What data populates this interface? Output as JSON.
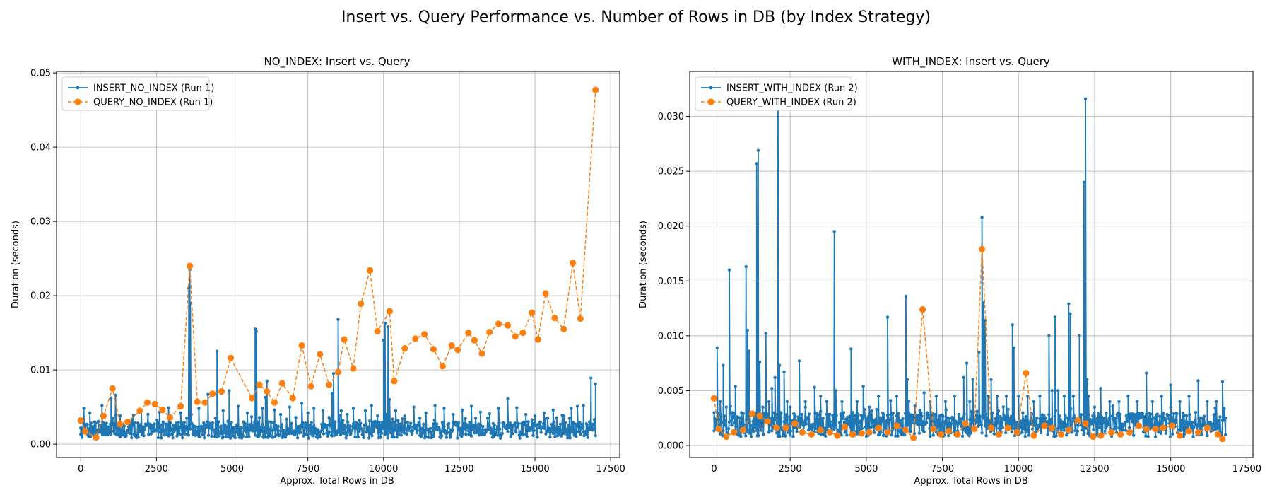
{
  "figure": {
    "title": "Insert vs. Query Performance vs. Number of Rows in DB (by Index Strategy)"
  },
  "colors": {
    "insert": "#1f77b4",
    "query": "#ff7f0e",
    "grid": "#b0b0b0"
  },
  "chart_data": [
    {
      "type": "line",
      "title": "NO_INDEX: Insert vs. Query",
      "xlabel": "Approx. Total Rows in DB",
      "ylabel": "Duration (seconds)",
      "xlim": [
        -800,
        17800
      ],
      "ylim": [
        -0.0018,
        0.0502
      ],
      "xticks": [
        0,
        2500,
        5000,
        7500,
        10000,
        12500,
        15000,
        17500
      ],
      "xtick_labels": [
        "0",
        "2500",
        "5000",
        "7500",
        "10000",
        "12500",
        "15000",
        "17500"
      ],
      "yticks": [
        0.0,
        0.01,
        0.02,
        0.03,
        0.04,
        0.05
      ],
      "ytick_labels": [
        "0.00",
        "0.01",
        "0.02",
        "0.03",
        "0.04",
        "0.05"
      ],
      "grid": true,
      "legend": "top-left",
      "series": [
        {
          "name": "INSERT_NO_INDEX (Run 1)",
          "style": "solid-dot",
          "noise": {
            "x_start": 0,
            "x_end": 17000,
            "step": 20,
            "base": 0.0019,
            "amp": 0.0011,
            "seed": 7
          },
          "x": [
            0,
            100,
            300,
            500,
            700,
            850,
            1000,
            1150,
            1300,
            1500,
            1700,
            2000,
            2300,
            2600,
            2900,
            3100,
            3300,
            3500,
            3570,
            3600,
            3620,
            3650,
            3700,
            3900,
            4200,
            4450,
            4500,
            4550,
            4700,
            4900,
            5000,
            5200,
            5500,
            5700,
            5760,
            5800,
            5850,
            6000,
            6100,
            6150,
            6200,
            6400,
            6600,
            6900,
            7100,
            7300,
            7500,
            7700,
            8000,
            8200,
            8300,
            8350,
            8400,
            8500,
            8550,
            8600,
            8800,
            9000,
            9200,
            9400,
            9600,
            9800,
            10000,
            10050,
            10100,
            10150,
            10200,
            10400,
            10700,
            11000,
            11200,
            11400,
            11700,
            12000,
            12300,
            12600,
            12900,
            13200,
            13500,
            13800,
            14100,
            14400,
            14700,
            15000,
            15300,
            15600,
            15900,
            16200,
            16400,
            16600,
            16800,
            16850,
            16900,
            17000
          ],
          "y": [
            0.0022,
            0.0048,
            0.0042,
            0.0016,
            0.0052,
            0.0028,
            0.0062,
            0.0066,
            0.0038,
            0.0014,
            0.0033,
            0.0045,
            0.0022,
            0.0043,
            0.0049,
            0.0018,
            0.0042,
            0.0035,
            0.021,
            0.0235,
            0.019,
            0.004,
            0.0023,
            0.0048,
            0.0067,
            0.0035,
            0.0125,
            0.003,
            0.0045,
            0.0072,
            0.0018,
            0.0051,
            0.0042,
            0.0025,
            0.0155,
            0.0152,
            0.003,
            0.0048,
            0.0063,
            0.0085,
            0.003,
            0.0046,
            0.004,
            0.005,
            0.0036,
            0.0055,
            0.0042,
            0.0048,
            0.0045,
            0.0036,
            0.0068,
            0.0095,
            0.003,
            0.0168,
            0.0038,
            0.0045,
            0.004,
            0.0048,
            0.0032,
            0.0045,
            0.0052,
            0.0038,
            0.014,
            0.0163,
            0.004,
            0.0158,
            0.006,
            0.0045,
            0.0038,
            0.005,
            0.0035,
            0.0042,
            0.0052,
            0.0048,
            0.004,
            0.0046,
            0.0051,
            0.0043,
            0.0041,
            0.0048,
            0.0061,
            0.0049,
            0.004,
            0.0038,
            0.0042,
            0.0046,
            0.0039,
            0.0048,
            0.0051,
            0.0052,
            0.003,
            0.0089,
            0.002,
            0.0081
          ]
        },
        {
          "name": "QUERY_NO_INDEX (Run 1)",
          "style": "dashed-circle",
          "x": [
            0,
            150,
            500,
            750,
            1050,
            1300,
            1550,
            1950,
            2200,
            2450,
            2700,
            2950,
            3300,
            3600,
            3850,
            4100,
            4350,
            4650,
            4950,
            5650,
            5900,
            6150,
            6400,
            6650,
            7000,
            7300,
            7600,
            7900,
            8200,
            8500,
            8700,
            9000,
            9250,
            9550,
            9800,
            10200,
            10350,
            10700,
            11050,
            11350,
            11650,
            11950,
            12250,
            12450,
            12800,
            13000,
            13250,
            13500,
            13800,
            14100,
            14350,
            14600,
            14900,
            15100,
            15350,
            15650,
            15950,
            16250,
            16500,
            17000
          ],
          "y": [
            0.0032,
            0.0017,
            0.0009,
            0.0038,
            0.0075,
            0.0027,
            0.003,
            0.0045,
            0.0056,
            0.0054,
            0.0046,
            0.0036,
            0.0051,
            0.024,
            0.0057,
            0.0056,
            0.0068,
            0.0071,
            0.0116,
            0.0062,
            0.008,
            0.0071,
            0.0056,
            0.0082,
            0.0062,
            0.0133,
            0.0078,
            0.0121,
            0.008,
            0.0097,
            0.0141,
            0.0102,
            0.0189,
            0.0234,
            0.0152,
            0.0179,
            0.0085,
            0.0129,
            0.0142,
            0.0148,
            0.0128,
            0.0105,
            0.0133,
            0.0127,
            0.015,
            0.014,
            0.0122,
            0.0151,
            0.0162,
            0.016,
            0.0145,
            0.015,
            0.0177,
            0.0141,
            0.0203,
            0.017,
            0.0155,
            0.0244,
            0.0169,
            0.0477
          ]
        }
      ]
    },
    {
      "type": "line",
      "title": "WITH_INDEX: Insert vs. Query",
      "xlabel": "Approx. Total Rows in DB",
      "ylabel": "Duration (seconds)",
      "xlim": [
        -800,
        17700
      ],
      "ylim": [
        -0.0011,
        0.0341
      ],
      "xticks": [
        0,
        2500,
        5000,
        7500,
        10000,
        12500,
        15000,
        17500
      ],
      "xtick_labels": [
        "0",
        "2500",
        "5000",
        "7500",
        "10000",
        "12500",
        "15000",
        "17500"
      ],
      "yticks": [
        0.0,
        0.005,
        0.01,
        0.015,
        0.02,
        0.025,
        0.03
      ],
      "ytick_labels": [
        "0.000",
        "0.005",
        "0.010",
        "0.015",
        "0.020",
        "0.025",
        "0.030"
      ],
      "grid": true,
      "legend": "top-left",
      "series": [
        {
          "name": "INSERT_WITH_INDEX (Run 2)",
          "style": "solid-dot",
          "noise": {
            "x_start": 0,
            "x_end": 16800,
            "step": 20,
            "base": 0.0019,
            "amp": 0.0011,
            "seed": 13
          },
          "x": [
            0,
            100,
            200,
            300,
            400,
            500,
            600,
            700,
            900,
            1050,
            1100,
            1150,
            1300,
            1400,
            1450,
            1500,
            1600,
            1700,
            1800,
            1900,
            2000,
            2100,
            2150,
            2200,
            2300,
            2400,
            2500,
            2800,
            3000,
            3300,
            3500,
            3700,
            3950,
            4000,
            4200,
            4500,
            4700,
            4900,
            5100,
            5400,
            5700,
            5800,
            6000,
            6300,
            6350,
            6400,
            6600,
            6900,
            7100,
            7300,
            7600,
            7900,
            8200,
            8300,
            8400,
            8500,
            8700,
            8800,
            8850,
            8900,
            9000,
            9100,
            9300,
            9600,
            9800,
            9850,
            10000,
            10300,
            10500,
            10700,
            11000,
            11100,
            11200,
            11300,
            11500,
            11650,
            11700,
            11800,
            12000,
            12150,
            12200,
            12250,
            12300,
            12500,
            12700,
            13000,
            13300,
            13600,
            13900,
            14200,
            14400,
            14700,
            15000,
            15300,
            15600,
            15900,
            16200,
            16500,
            16700,
            16800
          ],
          "y": [
            0.003,
            0.0089,
            0.004,
            0.0073,
            0.0035,
            0.016,
            0.003,
            0.0054,
            0.003,
            0.0163,
            0.0105,
            0.0086,
            0.003,
            0.0257,
            0.0269,
            0.0076,
            0.0035,
            0.0102,
            0.004,
            0.0052,
            0.0062,
            0.0315,
            0.0073,
            0.003,
            0.0067,
            0.004,
            0.0035,
            0.0077,
            0.004,
            0.0053,
            0.0045,
            0.004,
            0.0195,
            0.005,
            0.004,
            0.0088,
            0.004,
            0.0054,
            0.0035,
            0.0045,
            0.0117,
            0.0041,
            0.0045,
            0.0136,
            0.006,
            0.004,
            0.0036,
            0.0048,
            0.004,
            0.0045,
            0.004,
            0.0045,
            0.0062,
            0.0075,
            0.004,
            0.006,
            0.0085,
            0.0208,
            0.013,
            0.0114,
            0.0045,
            0.006,
            0.0045,
            0.0045,
            0.011,
            0.0089,
            0.0045,
            0.0045,
            0.004,
            0.0045,
            0.01,
            0.005,
            0.0117,
            0.005,
            0.0045,
            0.0129,
            0.012,
            0.0045,
            0.01,
            0.024,
            0.0316,
            0.006,
            0.0045,
            0.0035,
            0.0052,
            0.004,
            0.004,
            0.0045,
            0.004,
            0.0066,
            0.004,
            0.0045,
            0.0055,
            0.004,
            0.0045,
            0.0059,
            0.004,
            0.004,
            0.0058,
            0.0025
          ]
        },
        {
          "name": "QUERY_WITH_INDEX (Run 2)",
          "style": "dashed-circle",
          "x": [
            0,
            150,
            400,
            650,
            950,
            1250,
            1500,
            1750,
            2050,
            2350,
            2650,
            2900,
            3200,
            3500,
            3800,
            4050,
            4300,
            4550,
            4850,
            5100,
            5400,
            5700,
            6000,
            6300,
            6550,
            6850,
            7200,
            7450,
            7700,
            8000,
            8250,
            8550,
            8800,
            9100,
            9350,
            9650,
            9950,
            10250,
            10500,
            10850,
            11100,
            11400,
            11650,
            11950,
            12200,
            12450,
            12700,
            13050,
            13350,
            13650,
            13950,
            14200,
            14500,
            14750,
            15050,
            15300,
            15600,
            15900,
            16200,
            16550,
            16700
          ],
          "y": [
            0.0043,
            0.0015,
            0.0008,
            0.0012,
            0.0014,
            0.0029,
            0.0027,
            0.0022,
            0.0016,
            0.0016,
            0.002,
            0.0012,
            0.001,
            0.0014,
            0.0012,
            0.0009,
            0.0017,
            0.001,
            0.0011,
            0.0012,
            0.0016,
            0.0012,
            0.0018,
            0.0014,
            0.0007,
            0.0124,
            0.0015,
            0.001,
            0.0013,
            0.001,
            0.002,
            0.0015,
            0.0179,
            0.0016,
            0.001,
            0.0016,
            0.0012,
            0.0066,
            0.0009,
            0.0018,
            0.0016,
            0.001,
            0.0014,
            0.0023,
            0.002,
            0.0008,
            0.0009,
            0.0012,
            0.001,
            0.0012,
            0.0018,
            0.0015,
            0.0015,
            0.0016,
            0.0018,
            0.0009,
            0.0013,
            0.0012,
            0.0016,
            0.001,
            0.0006
          ]
        }
      ]
    }
  ]
}
